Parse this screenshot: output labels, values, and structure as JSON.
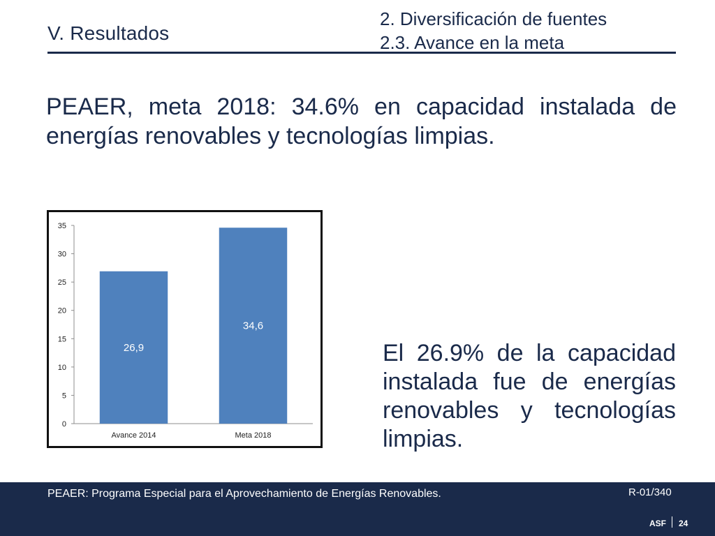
{
  "header": {
    "section": "V. Resultados",
    "topic_line1": "2. Diversificación de fuentes",
    "topic_line2": "2.3. Avance en la meta"
  },
  "lead": "PEAER, meta 2018: 34.6% en capacidad instalada de energías renovables y tecnologías limpias.",
  "side_note": "El 26.9% de la capacidad instalada fue de energías renovables y tecnologías limpias.",
  "footer": {
    "footnote": "PEAER: Programa Especial para el Aprovechamiento de Energías Renovables.",
    "doc_code": "R-01/340",
    "org": "ASF",
    "page": "24"
  },
  "chart_data": {
    "type": "bar",
    "categories": [
      "Avance 2014",
      "Meta 2018"
    ],
    "values": [
      26.9,
      34.6
    ],
    "data_labels": [
      "26,9",
      "34,6"
    ],
    "ylim": [
      0,
      35
    ],
    "yticks": [
      0,
      5,
      10,
      15,
      20,
      25,
      30,
      35
    ],
    "bar_color": "#4f81bd",
    "grid": false,
    "legend": "none"
  }
}
